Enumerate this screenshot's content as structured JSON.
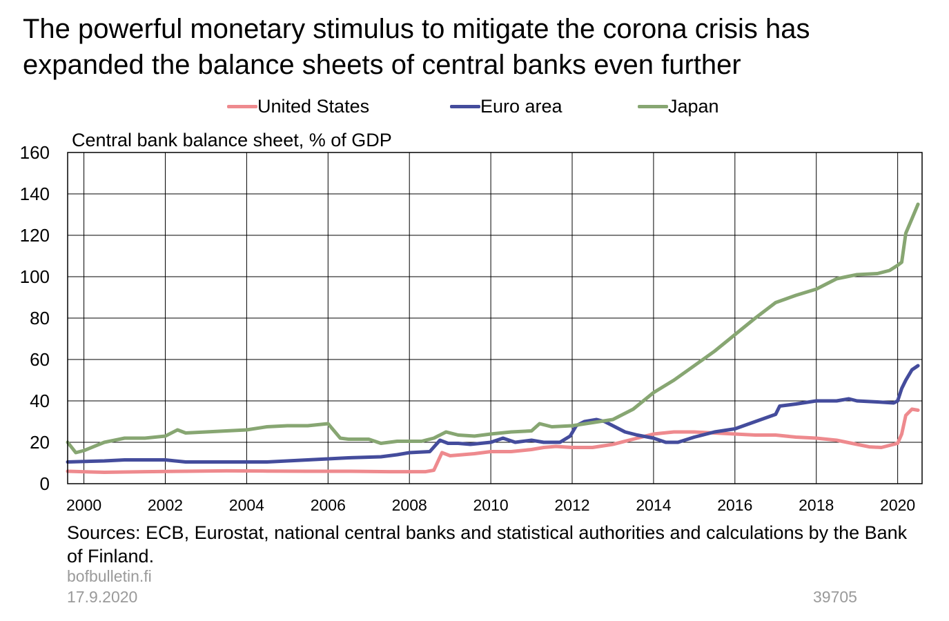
{
  "title": "The powerful monetary stimulus to mitigate the corona crisis has expanded the balance sheets of central banks even further",
  "footer": {
    "source": "Sources: ECB, Eurostat, national central banks and statistical authorities and calculations by the Bank of Finland.",
    "site": "bofbulletin.fi",
    "date": "17.9.2020",
    "code": "39705"
  },
  "chart_data": {
    "type": "line",
    "title": "The powerful monetary stimulus to mitigate the corona crisis has expanded the balance sheets of central banks even further",
    "ylabel": "Central bank balance sheet, % of GDP",
    "xlabel": "",
    "ylim": [
      0,
      160
    ],
    "xlim": [
      1999.6,
      2020.6
    ],
    "yticks": [
      0,
      20,
      40,
      60,
      80,
      100,
      120,
      140,
      160
    ],
    "xticks": [
      2000,
      2002,
      2004,
      2006,
      2008,
      2010,
      2012,
      2014,
      2016,
      2018,
      2020
    ],
    "grid": true,
    "legend": "top",
    "series": [
      {
        "name": "United States",
        "color": "#ee8a8e",
        "x": [
          1999.6,
          2000.5,
          2001.5,
          2002.5,
          2003.5,
          2004.5,
          2005.5,
          2006.5,
          2007.5,
          2008.4,
          2008.6,
          2008.8,
          2009.0,
          2009.3,
          2009.6,
          2010.0,
          2010.5,
          2011.0,
          2011.3,
          2011.6,
          2012.0,
          2012.5,
          2013.0,
          2013.5,
          2014.0,
          2014.5,
          2015.0,
          2015.5,
          2016.0,
          2016.5,
          2017.0,
          2017.5,
          2018.0,
          2018.5,
          2019.0,
          2019.3,
          2019.6,
          2019.9,
          2020.0,
          2020.1,
          2020.2,
          2020.35,
          2020.5
        ],
        "values": [
          6,
          5.5,
          5.8,
          6,
          6.2,
          6.1,
          6,
          6,
          5.8,
          5.8,
          6.5,
          15,
          13.5,
          14,
          14.5,
          15.5,
          15.5,
          16.5,
          17.5,
          18,
          17.5,
          17.5,
          19,
          21.5,
          24,
          25,
          25,
          24.5,
          24,
          23.5,
          23.5,
          22.5,
          22,
          21,
          19,
          17.8,
          17.5,
          19,
          19.5,
          24,
          33,
          36,
          35.5
        ]
      },
      {
        "name": "Euro area",
        "color": "#444c9c",
        "x": [
          1999.6,
          2000.5,
          2001.0,
          2001.5,
          2002.0,
          2002.5,
          2003.5,
          2004.5,
          2005.5,
          2006.5,
          2007.3,
          2007.7,
          2008.0,
          2008.5,
          2008.75,
          2008.95,
          2009.2,
          2009.5,
          2010.0,
          2010.3,
          2010.6,
          2011.0,
          2011.3,
          2011.7,
          2011.95,
          2012.1,
          2012.3,
          2012.6,
          2012.8,
          2013.0,
          2013.3,
          2013.6,
          2014.0,
          2014.3,
          2014.6,
          2015.0,
          2015.5,
          2016.0,
          2016.5,
          2017.0,
          2017.1,
          2017.5,
          2018.0,
          2018.5,
          2018.8,
          2019.0,
          2019.5,
          2019.9,
          2020.0,
          2020.1,
          2020.2,
          2020.35,
          2020.5
        ],
        "values": [
          10.5,
          11,
          11.5,
          11.5,
          11.5,
          10.5,
          10.5,
          10.5,
          11.5,
          12.5,
          13,
          14,
          15,
          15.5,
          21,
          19.5,
          19.5,
          19,
          20,
          22,
          20,
          21,
          20,
          20,
          23,
          28,
          30,
          31,
          30,
          28,
          25,
          23.5,
          22,
          20,
          20,
          22.5,
          25,
          26.5,
          30,
          33.5,
          37.5,
          38.5,
          40,
          40,
          41,
          40,
          39.5,
          39,
          40,
          46,
          50,
          55,
          57
        ]
      },
      {
        "name": "Japan",
        "color": "#87a672",
        "x": [
          1999.6,
          1999.8,
          2000.0,
          2000.5,
          2001.0,
          2001.5,
          2002.0,
          2002.3,
          2002.5,
          2003.0,
          2003.5,
          2004.0,
          2004.5,
          2005.0,
          2005.5,
          2006.0,
          2006.3,
          2006.5,
          2007.0,
          2007.3,
          2007.7,
          2008.0,
          2008.3,
          2008.6,
          2008.9,
          2009.2,
          2009.6,
          2010.0,
          2010.5,
          2011.0,
          2011.2,
          2011.5,
          2012.0,
          2012.5,
          2013.0,
          2013.5,
          2014.0,
          2014.5,
          2015.0,
          2015.5,
          2016.0,
          2016.5,
          2017.0,
          2017.5,
          2018.0,
          2018.5,
          2019.0,
          2019.5,
          2019.8,
          2020.0,
          2020.1,
          2020.2,
          2020.35,
          2020.5
        ],
        "values": [
          20,
          15,
          16,
          20,
          22,
          22,
          23,
          26,
          24.5,
          25,
          25.5,
          26,
          27.5,
          28,
          28,
          29,
          22,
          21.5,
          21.5,
          19.5,
          20.5,
          20.5,
          20.5,
          22,
          25,
          23.5,
          23,
          24,
          25,
          25.5,
          29,
          27.5,
          28,
          29.5,
          31,
          36,
          44,
          50,
          57,
          64,
          72,
          80,
          87.5,
          91,
          94,
          99,
          101,
          101.5,
          103,
          105.5,
          107,
          121,
          128,
          135
        ]
      }
    ]
  }
}
